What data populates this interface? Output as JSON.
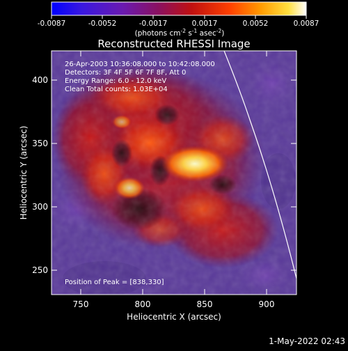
{
  "colorbar": {
    "ticks": [
      "-0.0087",
      "-0.0052",
      "-0.0017",
      "0.0017",
      "0.0052",
      "0.0087"
    ],
    "unit_base": "(photons cm",
    "unit_exp1": "-2",
    "unit_s": " s",
    "unit_exp2": "-1",
    "unit_asec": " asec",
    "unit_exp3": "-2",
    "unit_close": ")"
  },
  "plot": {
    "title": "Reconstructed RHESSI Image",
    "xlabel": "Heliocentric X (arcsec)",
    "ylabel": "Heliocentric Y (arcsec)",
    "xticks": [
      "750",
      "800",
      "850",
      "900"
    ],
    "yticks": [
      "400",
      "350",
      "300",
      "250"
    ],
    "info_lines": [
      "26-Apr-2003 10:36:08.000 to 10:42:08.000",
      "Detectors: 3F 4F 5F 6F 7F 8F, Att 0",
      "Energy Range: 6.0 - 12.0 keV",
      "Clean     Total counts: 1.03E+04"
    ],
    "peak_label": "Position of Peak = [838,330]"
  },
  "footer": {
    "timestamp": "1-May-2022 02:43"
  },
  "colors": {
    "background": "#000000",
    "text": "#ffffff",
    "cold": "#5a3a9a",
    "hot": "#ffffc8"
  }
}
